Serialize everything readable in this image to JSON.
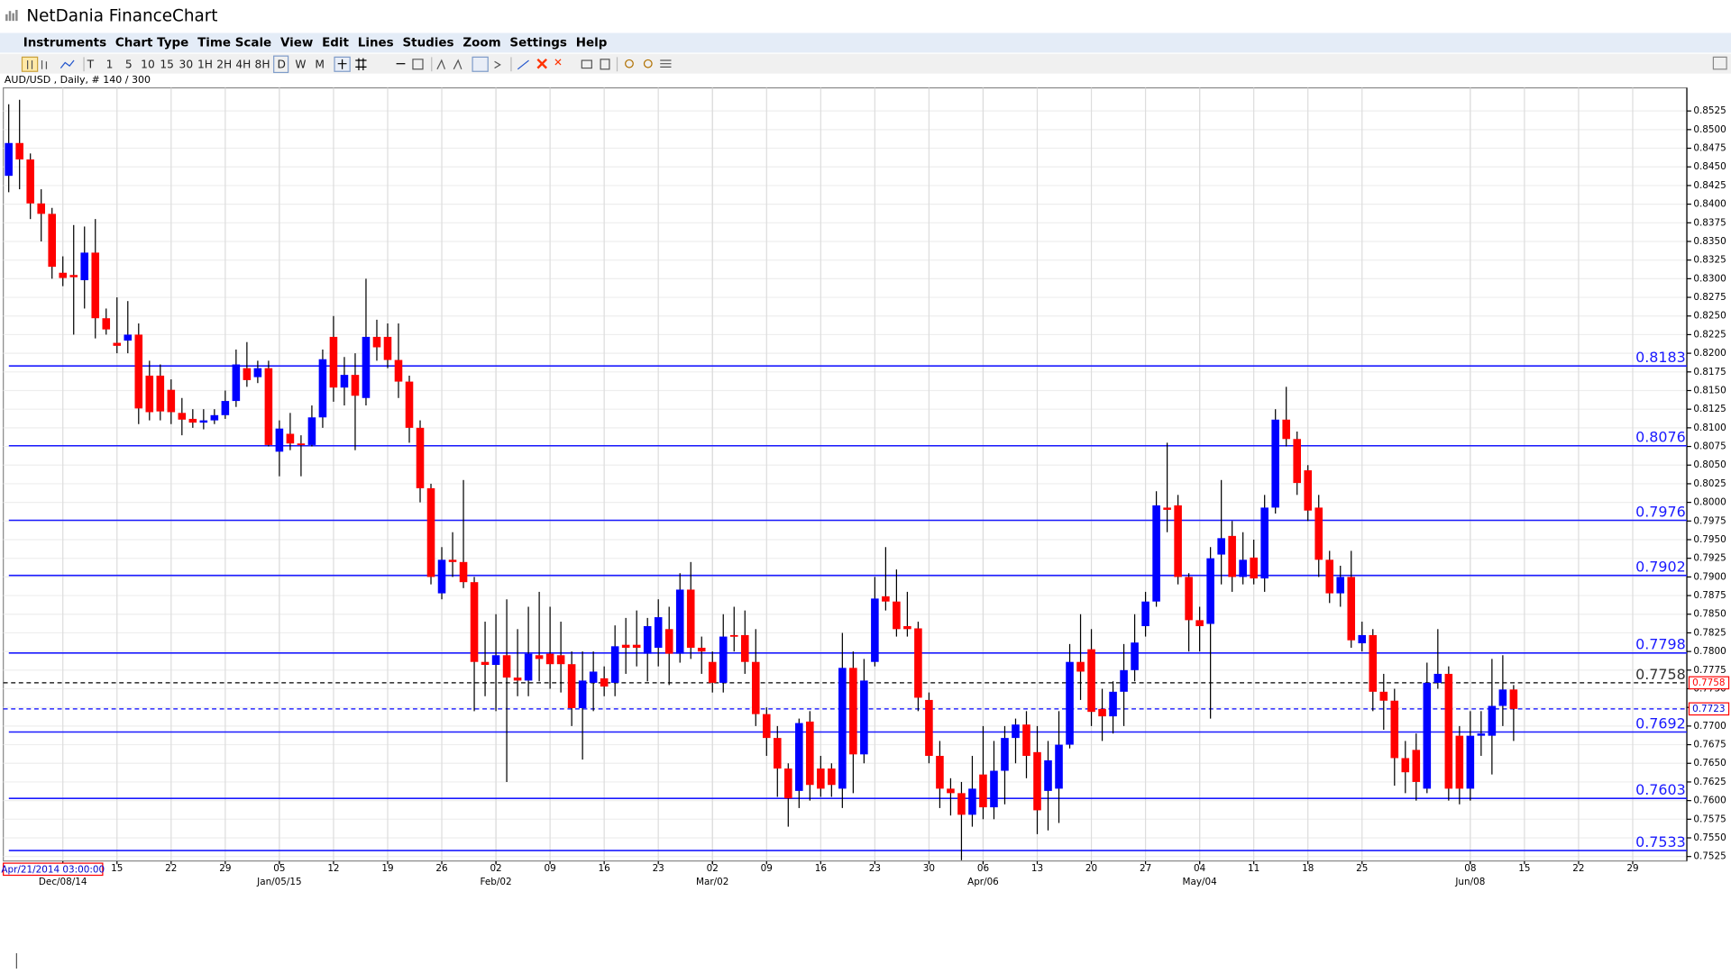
{
  "app": {
    "title": "NetDania FinanceChart",
    "menu": [
      "Instruments",
      "Chart Type",
      "Time Scale",
      "View",
      "Edit",
      "Lines",
      "Studies",
      "Zoom",
      "Settings",
      "Help"
    ],
    "toolbar": [
      "T",
      "1",
      "5",
      "10",
      "15",
      "30",
      "1H",
      "2H",
      "4H",
      "8H",
      "D",
      "W",
      "M"
    ],
    "symbol_info": "AUD/USD , Daily, # 140 / 300",
    "cursor_time": "Apr/21/2014 03:00:00"
  },
  "chart_data": {
    "type": "candlestick",
    "open": [
      0.8438,
      0.8482,
      0.846,
      0.8401,
      0.8387,
      0.8308,
      0.8305,
      0.8298,
      0.8335,
      0.8247,
      0.8214,
      0.8217,
      0.8225,
      0.817,
      0.817,
      0.8151,
      0.812,
      0.8112,
      0.8107,
      0.811,
      0.8117,
      0.8136,
      0.818,
      0.8168,
      0.818,
      0.8068,
      0.8092,
      0.8079,
      0.8077,
      0.8114,
      0.8222,
      0.8154,
      0.8171,
      0.814,
      0.8222,
      0.8222,
      0.8191,
      0.8162,
      0.81,
      0.8019,
      0.7878,
      0.7923,
      0.792,
      0.7893,
      0.7786,
      0.7782,
      0.7795,
      0.7765,
      0.7761,
      0.7795,
      0.7797,
      0.7795,
      0.7783,
      0.7724,
      0.7758,
      0.7764,
      0.7758,
      0.7809,
      0.7809,
      0.7797,
      0.7805,
      0.783,
      0.7797,
      0.7883,
      0.7805,
      0.7786,
      0.7758,
      0.7822,
      0.7822,
      0.7786,
      0.7716,
      0.7684,
      0.7643,
      0.7613,
      0.7706,
      0.7643,
      0.7643,
      0.7616,
      0.7778,
      0.7662,
      0.7786,
      0.7874,
      0.7867,
      0.7834,
      0.7831,
      0.7735,
      0.766,
      0.7616,
      0.761,
      0.7581,
      0.7635,
      0.7591,
      0.764,
      0.7684,
      0.7702,
      0.7665,
      0.7613,
      0.7616,
      0.7675,
      0.7786,
      0.7803,
      0.7723,
      0.7713,
      0.7746,
      0.7775,
      0.7834,
      0.7867,
      0.7993,
      0.7996,
      0.79,
      0.7842,
      0.7837,
      0.793,
      0.7955,
      0.79,
      0.7926,
      0.7898,
      0.7993,
      0.8111,
      0.8085,
      0.8043,
      0.7993,
      0.7923,
      0.7878,
      0.79,
      0.7811,
      0.7822,
      0.7746,
      0.7734,
      0.7657,
      0.7668,
      0.7616,
      0.7758,
      0.777,
      0.7687,
      0.7616,
      0.7687,
      0.7687,
      0.7727,
      0.7749
    ],
    "high": [
      0.8534,
      0.854,
      0.8468,
      0.842,
      0.8395,
      0.833,
      0.8372,
      0.837,
      0.838,
      0.826,
      0.8275,
      0.827,
      0.824,
      0.819,
      0.8185,
      0.8165,
      0.814,
      0.8125,
      0.8125,
      0.8125,
      0.815,
      0.8205,
      0.8215,
      0.819,
      0.819,
      0.811,
      0.812,
      0.809,
      0.813,
      0.8205,
      0.825,
      0.8195,
      0.82,
      0.83,
      0.8245,
      0.824,
      0.824,
      0.817,
      0.811,
      0.8025,
      0.794,
      0.796,
      0.803,
      0.79,
      0.784,
      0.785,
      0.787,
      0.783,
      0.786,
      0.788,
      0.786,
      0.784,
      0.78,
      0.78,
      0.78,
      0.778,
      0.7835,
      0.7845,
      0.7855,
      0.7845,
      0.787,
      0.786,
      0.7905,
      0.792,
      0.782,
      0.78,
      0.785,
      0.786,
      0.7855,
      0.783,
      0.7725,
      0.77,
      0.765,
      0.771,
      0.772,
      0.766,
      0.765,
      0.7825,
      0.78,
      0.779,
      0.79,
      0.794,
      0.791,
      0.788,
      0.784,
      0.7745,
      0.768,
      0.763,
      0.7625,
      0.766,
      0.77,
      0.768,
      0.77,
      0.771,
      0.772,
      0.77,
      0.768,
      0.772,
      0.781,
      0.785,
      0.783,
      0.775,
      0.776,
      0.781,
      0.785,
      0.788,
      0.8015,
      0.808,
      0.801,
      0.7905,
      0.786,
      0.794,
      0.803,
      0.7975,
      0.796,
      0.795,
      0.801,
      0.8125,
      0.8155,
      0.8095,
      0.805,
      0.801,
      0.7935,
      0.7915,
      0.7935,
      0.784,
      0.783,
      0.777,
      0.775,
      0.768,
      0.769,
      0.7785,
      0.783,
      0.778,
      0.77,
      0.772,
      0.772,
      0.779,
      0.7795,
      0.7755
    ],
    "low": [
      0.8416,
      0.842,
      0.838,
      0.835,
      0.83,
      0.829,
      0.8225,
      0.826,
      0.822,
      0.8225,
      0.82,
      0.82,
      0.8105,
      0.811,
      0.811,
      0.8105,
      0.809,
      0.81,
      0.8098,
      0.8105,
      0.8112,
      0.8128,
      0.8155,
      0.816,
      0.8075,
      0.8035,
      0.807,
      0.8035,
      0.8075,
      0.81,
      0.8135,
      0.813,
      0.807,
      0.813,
      0.819,
      0.818,
      0.814,
      0.808,
      0.8,
      0.789,
      0.787,
      0.79,
      0.7885,
      0.772,
      0.774,
      0.772,
      0.7625,
      0.774,
      0.774,
      0.776,
      0.775,
      0.7745,
      0.77,
      0.7655,
      0.772,
      0.774,
      0.774,
      0.777,
      0.778,
      0.776,
      0.778,
      0.7755,
      0.7785,
      0.779,
      0.777,
      0.7745,
      0.7745,
      0.78,
      0.777,
      0.77,
      0.766,
      0.7605,
      0.7565,
      0.759,
      0.76,
      0.7605,
      0.7605,
      0.759,
      0.761,
      0.765,
      0.778,
      0.7855,
      0.782,
      0.782,
      0.772,
      0.765,
      0.759,
      0.758,
      0.752,
      0.7565,
      0.7575,
      0.7575,
      0.7595,
      0.765,
      0.763,
      0.7555,
      0.756,
      0.757,
      0.767,
      0.7735,
      0.77,
      0.768,
      0.769,
      0.77,
      0.776,
      0.782,
      0.786,
      0.796,
      0.789,
      0.78,
      0.78,
      0.771,
      0.789,
      0.788,
      0.789,
      0.789,
      0.788,
      0.7985,
      0.8075,
      0.801,
      0.7975,
      0.79,
      0.7865,
      0.786,
      0.7805,
      0.78,
      0.772,
      0.7695,
      0.762,
      0.761,
      0.76,
      0.761,
      0.775,
      0.76,
      0.7595,
      0.76,
      0.766,
      0.7635,
      0.77,
      0.768
    ],
    "close": [
      0.8482,
      0.846,
      0.8401,
      0.8387,
      0.8316,
      0.8301,
      0.8302,
      0.8335,
      0.8247,
      0.8232,
      0.821,
      0.8225,
      0.8126,
      0.8121,
      0.8122,
      0.8121,
      0.8111,
      0.8107,
      0.811,
      0.8117,
      0.8136,
      0.8185,
      0.8164,
      0.818,
      0.8077,
      0.8099,
      0.8079,
      0.8077,
      0.8114,
      0.8192,
      0.8154,
      0.8171,
      0.8143,
      0.8222,
      0.8208,
      0.8191,
      0.8162,
      0.81,
      0.8019,
      0.79,
      0.7923,
      0.792,
      0.7893,
      0.7786,
      0.7782,
      0.7795,
      0.7765,
      0.7761,
      0.7797,
      0.779,
      0.7783,
      0.7783,
      0.7724,
      0.7761,
      0.7773,
      0.7753,
      0.7807,
      0.7805,
      0.7805,
      0.7834,
      0.7846,
      0.7797,
      0.7883,
      0.7805,
      0.78,
      0.7758,
      0.782,
      0.782,
      0.7786,
      0.7716,
      0.7684,
      0.7643,
      0.7603,
      0.7704,
      0.7621,
      0.7616,
      0.7621,
      0.7778,
      0.7662,
      0.7761,
      0.7871,
      0.7867,
      0.783,
      0.783,
      0.7738,
      0.766,
      0.7616,
      0.761,
      0.7581,
      0.7616,
      0.7591,
      0.764,
      0.7684,
      0.7702,
      0.766,
      0.7587,
      0.7654,
      0.7675,
      0.7786,
      0.7773,
      0.7719,
      0.7713,
      0.7746,
      0.7775,
      0.7812,
      0.7867,
      0.7996,
      0.799,
      0.79,
      0.7842,
      0.7834,
      0.7925,
      0.7952,
      0.79,
      0.7923,
      0.7898,
      0.7993,
      0.8111,
      0.8085,
      0.8026,
      0.7989,
      0.7923,
      0.7878,
      0.79,
      0.7815,
      0.7822,
      0.7746,
      0.7734,
      0.7657,
      0.7638,
      0.7625,
      0.7758,
      0.777,
      0.7616,
      0.7616,
      0.7687,
      0.769,
      0.7727,
      0.7749,
      0.7723
    ],
    "up_color": "#0000ff",
    "down_color": "#ff0000",
    "levels": [
      0.8183,
      0.8076,
      0.7976,
      0.7902,
      0.7798,
      0.7692,
      0.7603,
      0.7533
    ],
    "level_color": "#1a1aff",
    "price_markers": [
      {
        "value": 0.7758,
        "color": "#000000"
      },
      {
        "value": 0.7723,
        "color": "#0000ff"
      }
    ],
    "ylim": [
      0.7519,
      0.8556
    ],
    "yticks": [
      {
        "value": 0.8525,
        "label": "0.8525"
      },
      {
        "value": 0.85,
        "label": "0.8500"
      },
      {
        "value": 0.8475,
        "label": "0.8475"
      },
      {
        "value": 0.845,
        "label": "0.8450"
      },
      {
        "value": 0.8425,
        "label": "0.8425"
      },
      {
        "value": 0.84,
        "label": "0.8400"
      },
      {
        "value": 0.8375,
        "label": "0.8375"
      },
      {
        "value": 0.835,
        "label": "0.8350"
      },
      {
        "value": 0.8325,
        "label": "0.8325"
      },
      {
        "value": 0.83,
        "label": "0.8300"
      },
      {
        "value": 0.8275,
        "label": "0.8275"
      },
      {
        "value": 0.825,
        "label": "0.8250"
      },
      {
        "value": 0.8225,
        "label": "0.8225"
      },
      {
        "value": 0.82,
        "label": "0.8200"
      },
      {
        "value": 0.8175,
        "label": "0.8175"
      },
      {
        "value": 0.815,
        "label": "0.8150"
      },
      {
        "value": 0.8125,
        "label": "0.8125"
      },
      {
        "value": 0.81,
        "label": "0.8100"
      },
      {
        "value": 0.8075,
        "label": "0.8075"
      },
      {
        "value": 0.805,
        "label": "0.8050"
      },
      {
        "value": 0.8025,
        "label": "0.8025"
      },
      {
        "value": 0.8,
        "label": "0.8000"
      },
      {
        "value": 0.7975,
        "label": "0.7975"
      },
      {
        "value": 0.795,
        "label": "0.7950"
      },
      {
        "value": 0.7925,
        "label": "0.7925"
      },
      {
        "value": 0.79,
        "label": "0.7900"
      },
      {
        "value": 0.7875,
        "label": "0.7875"
      },
      {
        "value": 0.785,
        "label": "0.7850"
      },
      {
        "value": 0.7825,
        "label": "0.7825"
      },
      {
        "value": 0.78,
        "label": "0.7800"
      },
      {
        "value": 0.7775,
        "label": "0.7775"
      },
      {
        "value": 0.775,
        "label": "0.7750"
      },
      {
        "value": 0.7725,
        "label": "0.7725"
      },
      {
        "value": 0.77,
        "label": "0.7700"
      },
      {
        "value": 0.7675,
        "label": "0.7675"
      },
      {
        "value": 0.765,
        "label": "0.7650"
      },
      {
        "value": 0.7625,
        "label": "0.7625"
      },
      {
        "value": 0.76,
        "label": "0.7600"
      },
      {
        "value": 0.7575,
        "label": "0.7575"
      },
      {
        "value": 0.755,
        "label": "0.7550"
      },
      {
        "value": 0.7525,
        "label": "0.7525"
      }
    ],
    "xlim": [
      -0.5,
      155
    ],
    "xticks": [
      {
        "value": 10,
        "label": "15"
      },
      {
        "value": 15,
        "label": "22"
      },
      {
        "value": 20,
        "label": "29"
      },
      {
        "value": 25,
        "label": "05"
      },
      {
        "value": 30,
        "label": "12"
      },
      {
        "value": 35,
        "label": "19"
      },
      {
        "value": 40,
        "label": "26"
      },
      {
        "value": 45,
        "label": "02"
      },
      {
        "value": 50,
        "label": "09"
      },
      {
        "value": 55,
        "label": "16"
      },
      {
        "value": 60,
        "label": "23"
      },
      {
        "value": 65,
        "label": "02"
      },
      {
        "value": 70,
        "label": "09"
      },
      {
        "value": 75,
        "label": "16"
      },
      {
        "value": 80,
        "label": "23"
      },
      {
        "value": 85,
        "label": "30"
      },
      {
        "value": 90,
        "label": "06"
      },
      {
        "value": 95,
        "label": "13"
      },
      {
        "value": 100,
        "label": "20"
      },
      {
        "value": 105,
        "label": "27"
      },
      {
        "value": 110,
        "label": "04"
      },
      {
        "value": 115,
        "label": "11"
      },
      {
        "value": 120,
        "label": "18"
      },
      {
        "value": 125,
        "label": "25"
      },
      {
        "value": 135,
        "label": "08"
      },
      {
        "value": 140,
        "label": "15"
      },
      {
        "value": 145,
        "label": "22"
      },
      {
        "value": 150,
        "label": "29"
      }
    ],
    "xticks_major": [
      {
        "value": 5,
        "label": "Dec/08/14"
      },
      {
        "value": 25,
        "label": "Jan/05/15"
      },
      {
        "value": 45,
        "label": "Feb/02"
      },
      {
        "value": 65,
        "label": "Mar/02"
      },
      {
        "value": 90,
        "label": "Apr/06"
      },
      {
        "value": 110,
        "label": "May/04"
      },
      {
        "value": 135,
        "label": "Jun/08"
      }
    ],
    "grid": true
  }
}
